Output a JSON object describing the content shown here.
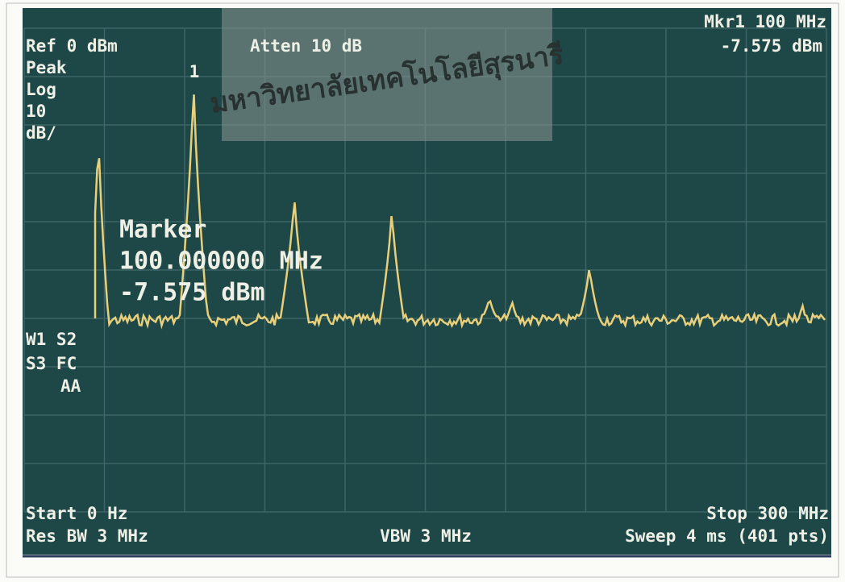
{
  "watermark": "มหาวิทยาลัยเทคโนโลยีสุรนารี",
  "header": {
    "ref": "Ref 0 dBm",
    "atten": "Atten 10 dB",
    "marker_freq": "Mkr1 100 MHz",
    "marker_level": "-7.575 dBm"
  },
  "left_panel": [
    "Peak",
    "Log",
    "10",
    "dB/"
  ],
  "marker_flag": "1",
  "marker_box": {
    "title": "Marker",
    "freq": "100.000000 MHz",
    "level": "-7.575 dBm"
  },
  "status": [
    "W1 S2",
    "S3 FC",
    "AA"
  ],
  "footer": {
    "start": "Start 0 Hz",
    "rbw": "Res BW 3 MHz",
    "vbw": "VBW 3 MHz",
    "stop": "Stop 300 MHz",
    "sweep": "Sweep 4 ms (401 pts)"
  }
}
